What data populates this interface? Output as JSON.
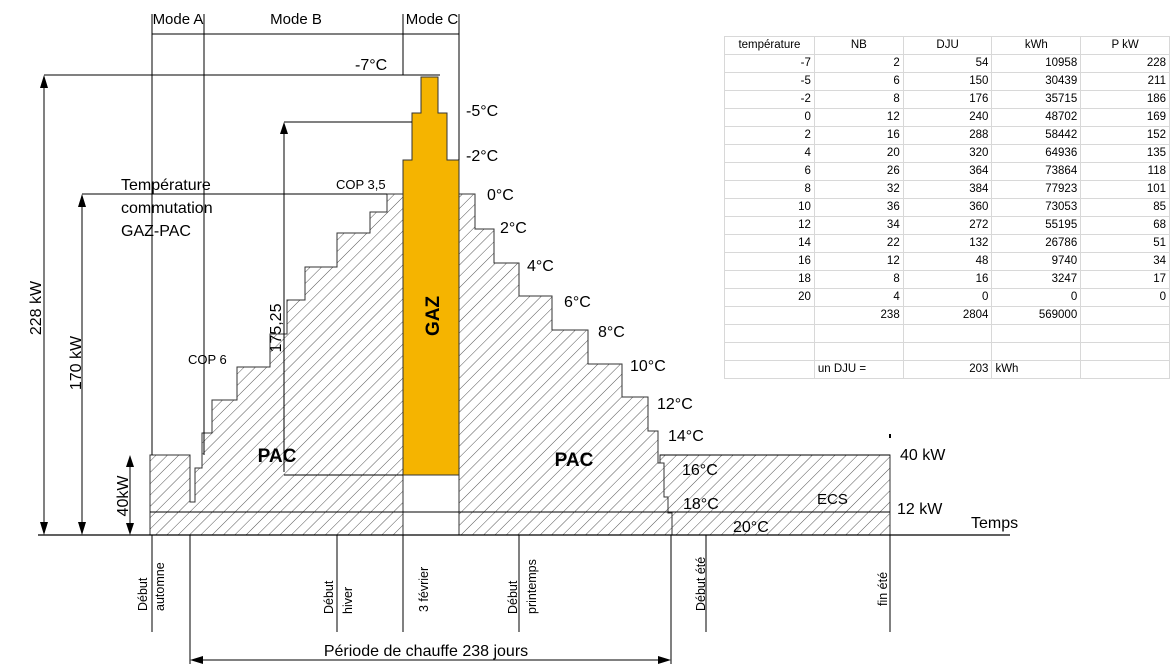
{
  "modes": [
    "Mode A",
    "Mode B",
    "Mode C"
  ],
  "labels": {
    "commutation": [
      "Température",
      "commutation",
      "GAZ-PAC"
    ],
    "cop35": "COP 3,5",
    "cop6": "COP 6",
    "gaz": "GAZ",
    "pac_left": "PAC",
    "pac_right": "PAC",
    "ecs": "ECS",
    "temps": "Temps",
    "p_40": "40 kW",
    "p_12": "12 kW",
    "periode": "Période de chauffe 238 jours"
  },
  "power_axis": {
    "p228": "228 kW",
    "p170": "170 kW",
    "p17525": "175,25",
    "p40": "40kW"
  },
  "temperatures": [
    "-7°C",
    "-5°C",
    "-2°C",
    "0°C",
    "2°C",
    "4°C",
    "6°C",
    "8°C",
    "10°C",
    "12°C",
    "14°C",
    "16°C",
    "18°C",
    "20°C"
  ],
  "timeline": [
    [
      "Début",
      "automne"
    ],
    [
      "Début",
      "hiver"
    ],
    [
      "3 février",
      ""
    ],
    [
      "Début",
      "printemps"
    ],
    [
      "Début été",
      ""
    ],
    [
      "fin été",
      ""
    ]
  ],
  "table": {
    "headers": [
      "température",
      "NB",
      "DJU",
      "kWh",
      "P kW"
    ],
    "rows": [
      [
        "-7",
        "2",
        "54",
        "10958",
        "228"
      ],
      [
        "-5",
        "6",
        "150",
        "30439",
        "211"
      ],
      [
        "-2",
        "8",
        "176",
        "35715",
        "186"
      ],
      [
        "0",
        "12",
        "240",
        "48702",
        "169"
      ],
      [
        "2",
        "16",
        "288",
        "58442",
        "152"
      ],
      [
        "4",
        "20",
        "320",
        "64936",
        "135"
      ],
      [
        "6",
        "26",
        "364",
        "73864",
        "118"
      ],
      [
        "8",
        "32",
        "384",
        "77923",
        "101"
      ],
      [
        "10",
        "36",
        "360",
        "73053",
        "85"
      ],
      [
        "12",
        "34",
        "272",
        "55195",
        "68"
      ],
      [
        "14",
        "22",
        "132",
        "26786",
        "51"
      ],
      [
        "16",
        "12",
        "48",
        "9740",
        "34"
      ],
      [
        "18",
        "8",
        "16",
        "3247",
        "17"
      ],
      [
        "20",
        "4",
        "0",
        "0",
        "0"
      ]
    ],
    "totals": [
      "",
      "238",
      "2804",
      "569000",
      ""
    ],
    "dju_label": "un DJU =",
    "dju_value": "203",
    "dju_unit": "kWh"
  }
}
